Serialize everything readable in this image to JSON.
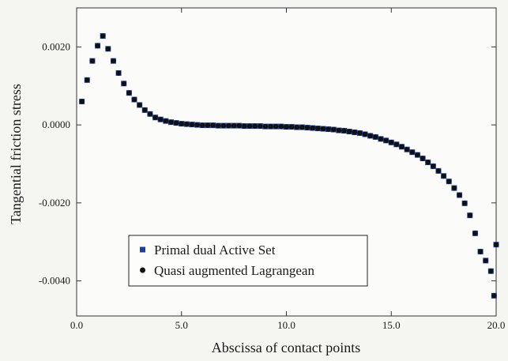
{
  "chart_data": {
    "type": "scatter",
    "xlabel": "Abscissa of contact points",
    "ylabel": "Tangential friction stress",
    "xlim": [
      0,
      20
    ],
    "ylim": [
      -0.0049,
      0.003
    ],
    "xticks": [
      {
        "value": 0,
        "label": "0.0"
      },
      {
        "value": 5,
        "label": "5.0"
      },
      {
        "value": 10,
        "label": "10.0"
      },
      {
        "value": 15,
        "label": "15.0"
      },
      {
        "value": 20,
        "label": "20.0"
      }
    ],
    "yticks": [
      {
        "value": 0.002,
        "label": "0.0020"
      },
      {
        "value": 0,
        "label": "0.0000"
      },
      {
        "value": -0.002,
        "label": "-0.0020"
      },
      {
        "value": -0.004,
        "label": "-0.0040"
      }
    ],
    "legend": "lower left",
    "x": [
      0.25,
      0.5,
      0.75,
      1,
      1.25,
      1.5,
      1.75,
      2,
      2.25,
      2.5,
      2.75,
      3,
      3.25,
      3.5,
      3.75,
      4,
      4.25,
      4.5,
      4.75,
      5,
      5.25,
      5.5,
      5.75,
      6,
      6.25,
      6.5,
      6.75,
      7,
      7.25,
      7.5,
      7.75,
      8,
      8.25,
      8.5,
      8.75,
      9,
      9.25,
      9.5,
      9.75,
      10,
      10.25,
      10.5,
      10.75,
      11,
      11.25,
      11.5,
      11.75,
      12,
      12.25,
      12.5,
      12.75,
      13,
      13.25,
      13.5,
      13.75,
      14,
      14.25,
      14.5,
      14.75,
      15,
      15.25,
      15.5,
      15.75,
      16,
      16.25,
      16.5,
      16.75,
      17,
      17.25,
      17.5,
      17.75,
      18,
      18.25,
      18.5,
      18.75,
      19,
      19.25,
      19.5,
      19.75,
      19.9,
      20
    ],
    "series": [
      {
        "name": "Primal dual Active Set",
        "color": "#1f3f99",
        "marker": "square",
        "values": [
          0.0006,
          0.00115,
          0.00164,
          0.00203,
          0.00228,
          0.00195,
          0.00164,
          0.00133,
          0.00106,
          0.00082,
          0.00065,
          0.00051,
          0.00038,
          0.00028,
          0.00019,
          0.00014,
          0.0001,
          7e-05,
          5e-05,
          3e-05,
          2e-05,
          1e-05,
          0,
          -1e-05,
          -1e-05,
          -1e-05,
          -2e-05,
          -2e-05,
          -2e-05,
          -2e-05,
          -2e-05,
          -3e-05,
          -3e-05,
          -3e-05,
          -3e-05,
          -4e-05,
          -4e-05,
          -4e-05,
          -4e-05,
          -5e-05,
          -5e-05,
          -6e-05,
          -6e-05,
          -7e-05,
          -8e-05,
          -9e-05,
          -0.0001,
          -0.00011,
          -0.00012,
          -0.00014,
          -0.00015,
          -0.00017,
          -0.00019,
          -0.00021,
          -0.00024,
          -0.00028,
          -0.00031,
          -0.00036,
          -0.0004,
          -0.00045,
          -0.0005,
          -0.00056,
          -0.00063,
          -0.0007,
          -0.00077,
          -0.00086,
          -0.00096,
          -0.00106,
          -0.00118,
          -0.00131,
          -0.00145,
          -0.00162,
          -0.0018,
          -0.00201,
          -0.00232,
          -0.00278,
          -0.00325,
          -0.00348,
          -0.00375,
          -0.00438,
          -0.00307
        ]
      },
      {
        "name": "Quasi augmented Lagrangean",
        "color": "#111111",
        "marker": "circle",
        "values": [
          0.0006,
          0.00115,
          0.00164,
          0.00203,
          0.00228,
          0.00195,
          0.00164,
          0.00133,
          0.00106,
          0.00082,
          0.00065,
          0.00051,
          0.00038,
          0.00028,
          0.00019,
          0.00014,
          0.0001,
          7e-05,
          5e-05,
          3e-05,
          2e-05,
          1e-05,
          0,
          -1e-05,
          -1e-05,
          -1e-05,
          -2e-05,
          -2e-05,
          -2e-05,
          -2e-05,
          -2e-05,
          -3e-05,
          -3e-05,
          -3e-05,
          -3e-05,
          -4e-05,
          -4e-05,
          -4e-05,
          -4e-05,
          -5e-05,
          -5e-05,
          -6e-05,
          -6e-05,
          -7e-05,
          -8e-05,
          -9e-05,
          -0.0001,
          -0.00011,
          -0.00012,
          -0.00014,
          -0.00015,
          -0.00017,
          -0.00019,
          -0.00021,
          -0.00024,
          -0.00028,
          -0.00031,
          -0.00036,
          -0.0004,
          -0.00045,
          -0.0005,
          -0.00056,
          -0.00063,
          -0.0007,
          -0.00077,
          -0.00086,
          -0.00096,
          -0.00106,
          -0.00118,
          -0.00131,
          -0.00145,
          -0.00162,
          -0.0018,
          -0.00201,
          -0.00232,
          -0.00278,
          -0.00325,
          -0.00348,
          -0.00375,
          -0.00438,
          -0.00307
        ]
      }
    ]
  }
}
